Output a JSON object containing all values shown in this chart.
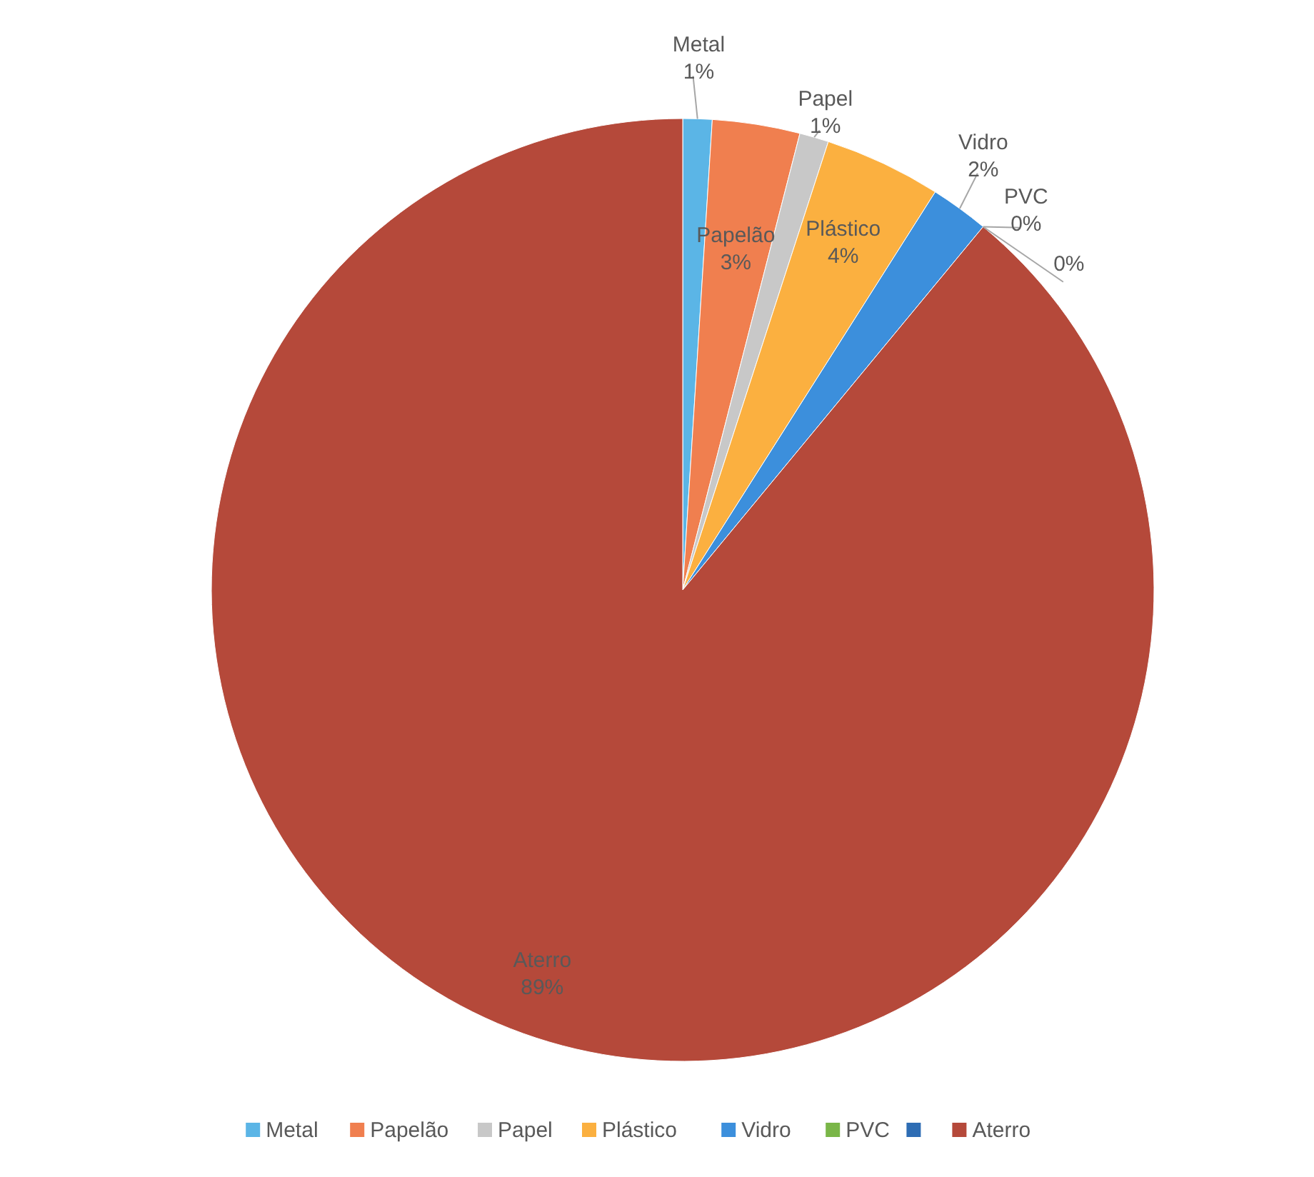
{
  "chart_data": {
    "type": "pie",
    "categories": [
      "Metal",
      "Papelão",
      "Papel",
      "Plástico",
      "Vidro",
      "PVC",
      null,
      "Aterro"
    ],
    "values": [
      1,
      3,
      1,
      4,
      2,
      0,
      0,
      89
    ],
    "value_labels": [
      "1%",
      "3%",
      "1%",
      "4%",
      "2%",
      "0%",
      "0%",
      "89%"
    ],
    "colors": [
      "#5bb5e6",
      "#f07f4f",
      "#c8c8c8",
      "#fbb040",
      "#3c8fdc",
      "#7ab648",
      "#2e6db4",
      "#b5493a"
    ],
    "legend": "bottom"
  }
}
